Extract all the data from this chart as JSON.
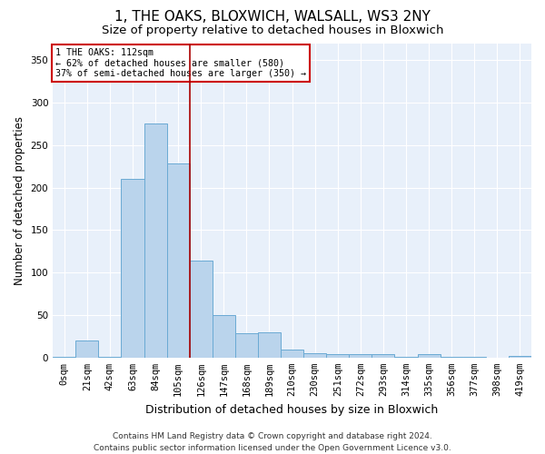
{
  "title": "1, THE OAKS, BLOXWICH, WALSALL, WS3 2NY",
  "subtitle": "Size of property relative to detached houses in Bloxwich",
  "xlabel": "Distribution of detached houses by size in Bloxwich",
  "ylabel": "Number of detached properties",
  "bar_labels": [
    "0sqm",
    "21sqm",
    "42sqm",
    "63sqm",
    "84sqm",
    "105sqm",
    "126sqm",
    "147sqm",
    "168sqm",
    "189sqm",
    "210sqm",
    "230sqm",
    "251sqm",
    "272sqm",
    "293sqm",
    "314sqm",
    "335sqm",
    "356sqm",
    "377sqm",
    "398sqm",
    "419sqm"
  ],
  "bar_values": [
    1,
    20,
    1,
    210,
    275,
    228,
    114,
    50,
    29,
    30,
    9,
    5,
    4,
    4,
    4,
    1,
    4,
    1,
    1,
    0,
    2
  ],
  "bar_color": "#bad4ec",
  "bar_edge_color": "#6aaad4",
  "background_color": "#e8f0fa",
  "grid_color": "#ffffff",
  "vline_x": 5.5,
  "vline_color": "#aa0000",
  "annotation_text": "1 THE OAKS: 112sqm\n← 62% of detached houses are smaller (580)\n37% of semi-detached houses are larger (350) →",
  "annotation_box_color": "#ffffff",
  "annotation_box_edge": "#cc0000",
  "ylim": [
    0,
    370
  ],
  "yticks": [
    0,
    50,
    100,
    150,
    200,
    250,
    300,
    350
  ],
  "footer": "Contains HM Land Registry data © Crown copyright and database right 2024.\nContains public sector information licensed under the Open Government Licence v3.0.",
  "title_fontsize": 11,
  "subtitle_fontsize": 9.5,
  "xlabel_fontsize": 9,
  "ylabel_fontsize": 8.5,
  "tick_fontsize": 7.5,
  "footer_fontsize": 6.5,
  "fig_bg": "#ffffff"
}
